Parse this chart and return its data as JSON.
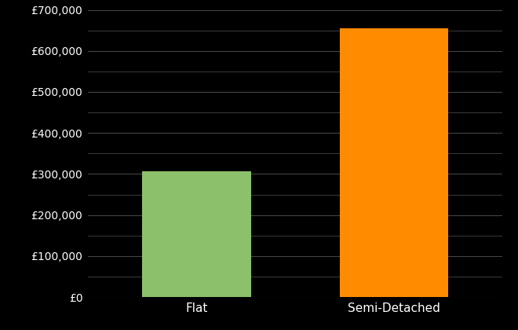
{
  "categories": [
    "Flat",
    "Semi-Detached"
  ],
  "values": [
    307000,
    655000
  ],
  "bar_colors": [
    "#8DC06A",
    "#FF8C00"
  ],
  "background_color": "#000000",
  "text_color": "#ffffff",
  "grid_color": "#444444",
  "ylim": [
    0,
    700000
  ],
  "yticks": [
    0,
    100000,
    200000,
    300000,
    400000,
    500000,
    600000,
    700000
  ],
  "ytick_labels": [
    "£0",
    "£100,000",
    "£200,000",
    "£300,000",
    "£400,000",
    "£500,000",
    "£600,000",
    "£700,000"
  ],
  "minor_ytick_step": 50000,
  "bar_width": 0.55,
  "x_positions": [
    0,
    1
  ],
  "xlim": [
    -0.55,
    1.55
  ]
}
